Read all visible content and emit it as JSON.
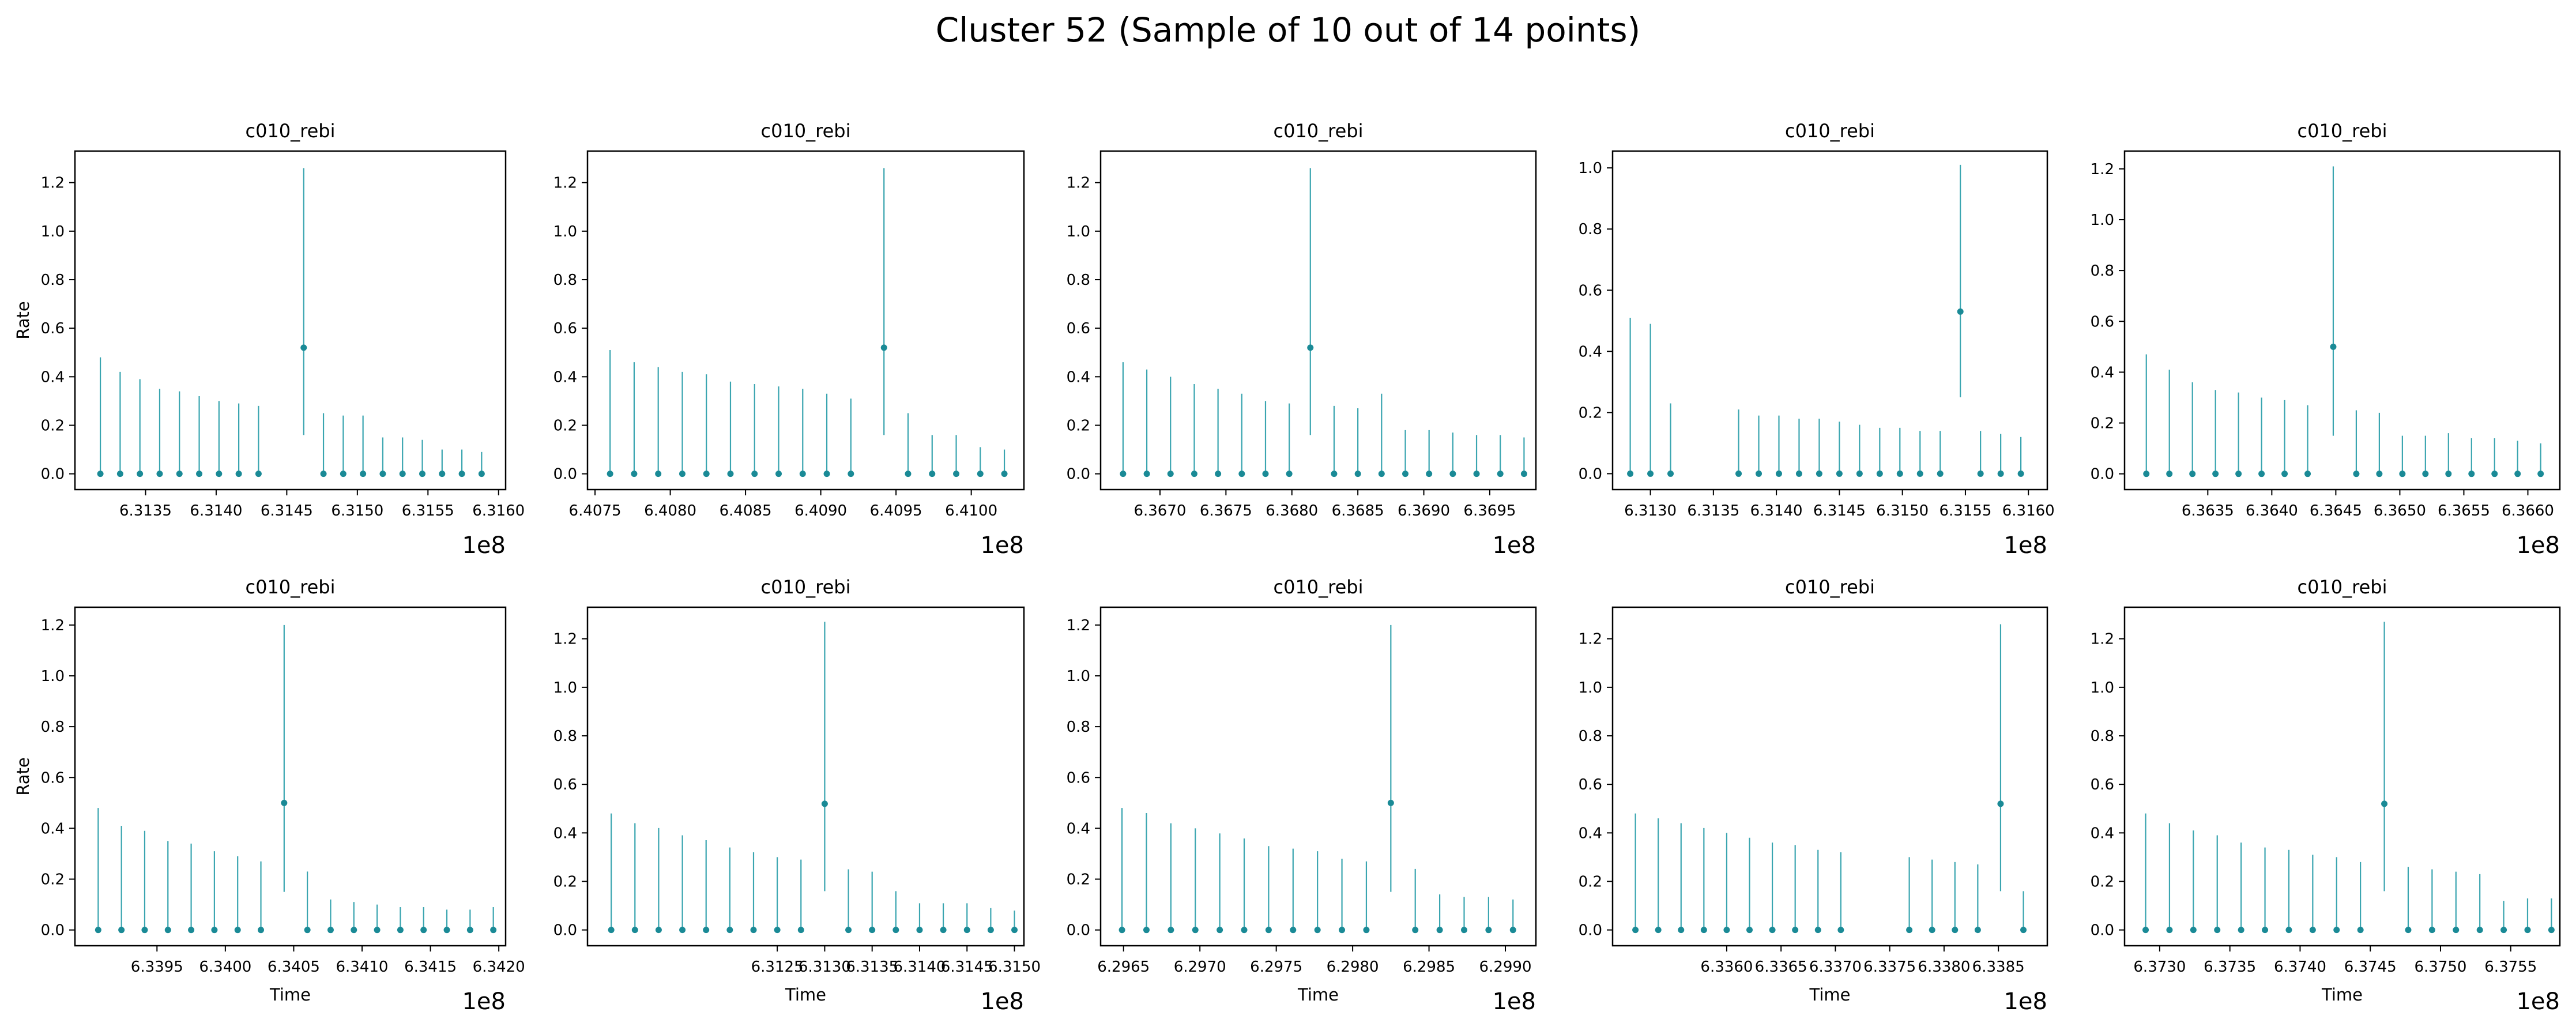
{
  "figure": {
    "suptitle": "Cluster 52 (Sample of 10 out of 14 points)"
  },
  "style": {
    "series_color": "#1a8a96",
    "errorbar_color": "#3aa5b0",
    "axis_color": "#000000"
  },
  "chart_data": [
    {
      "type": "scatter",
      "title": "c010_rebi",
      "xlabel": "",
      "ylabel": "Rate",
      "offset_text": "1e8",
      "xlim": [
        631.3,
        631.605
      ],
      "ylim": [
        -0.065,
        1.33
      ],
      "xticks": [
        631.35,
        631.4,
        631.45,
        631.5,
        631.55,
        631.6
      ],
      "xtick_labels": [
        "6.3135",
        "6.3140",
        "6.3145",
        "6.3150",
        "6.3155",
        "6.3160"
      ],
      "yticks": [
        0,
        0.2,
        0.4,
        0.6,
        0.8,
        1.0,
        1.2
      ],
      "ytick_labels": [
        "0.0",
        "0.2",
        "0.4",
        "0.6",
        "0.8",
        "1.0",
        "1.2"
      ],
      "x": [
        631.318,
        631.332,
        631.346,
        631.36,
        631.374,
        631.388,
        631.402,
        631.416,
        631.43,
        631.462,
        631.476,
        631.49,
        631.504,
        631.518,
        631.532,
        631.546,
        631.56,
        631.574,
        631.588
      ],
      "y": [
        0,
        0,
        0,
        0,
        0,
        0,
        0,
        0,
        0,
        0.52,
        0,
        0,
        0,
        0,
        0,
        0,
        0,
        0,
        0
      ],
      "yerr_up": [
        0.48,
        0.42,
        0.39,
        0.35,
        0.34,
        0.32,
        0.3,
        0.29,
        0.28,
        0.74,
        0.25,
        0.24,
        0.24,
        0.15,
        0.15,
        0.14,
        0.1,
        0.1,
        0.09
      ],
      "yerr_down": [
        0,
        0,
        0,
        0,
        0,
        0,
        0,
        0,
        0,
        0.36,
        0,
        0,
        0,
        0,
        0,
        0,
        0,
        0,
        0
      ]
    },
    {
      "type": "scatter",
      "title": "c010_rebi",
      "xlabel": "",
      "ylabel": "",
      "offset_text": "1e8",
      "xlim": [
        640.745,
        641.035
      ],
      "ylim": [
        -0.065,
        1.33
      ],
      "xticks": [
        640.75,
        640.8,
        640.85,
        640.9,
        640.95,
        641.0
      ],
      "xtick_labels": [
        "6.4075",
        "6.4080",
        "6.4085",
        "6.4090",
        "6.4095",
        "6.4100"
      ],
      "yticks": [
        0,
        0.2,
        0.4,
        0.6,
        0.8,
        1.0,
        1.2
      ],
      "ytick_labels": [
        "0.0",
        "0.2",
        "0.4",
        "0.6",
        "0.8",
        "1.0",
        "1.2"
      ],
      "x": [
        640.76,
        640.776,
        640.792,
        640.808,
        640.824,
        640.84,
        640.856,
        640.872,
        640.888,
        640.904,
        640.92,
        640.942,
        640.958,
        640.974,
        640.99,
        641.006,
        641.022
      ],
      "y": [
        0,
        0,
        0,
        0,
        0,
        0,
        0,
        0,
        0,
        0,
        0,
        0.52,
        0,
        0,
        0,
        0,
        0
      ],
      "yerr_up": [
        0.51,
        0.46,
        0.44,
        0.42,
        0.41,
        0.38,
        0.37,
        0.36,
        0.35,
        0.33,
        0.31,
        0.74,
        0.25,
        0.16,
        0.16,
        0.11,
        0.1
      ],
      "yerr_down": [
        0,
        0,
        0,
        0,
        0,
        0,
        0,
        0,
        0,
        0,
        0,
        0.36,
        0,
        0,
        0,
        0,
        0
      ]
    },
    {
      "type": "scatter",
      "title": "c010_rebi",
      "xlabel": "",
      "ylabel": "",
      "offset_text": "1e8",
      "xlim": [
        636.655,
        636.985
      ],
      "ylim": [
        -0.065,
        1.33
      ],
      "xticks": [
        636.7,
        636.75,
        636.8,
        636.85,
        636.9,
        636.95
      ],
      "xtick_labels": [
        "6.3670",
        "6.3675",
        "6.3680",
        "6.3685",
        "6.3690",
        "6.3695"
      ],
      "yticks": [
        0,
        0.2,
        0.4,
        0.6,
        0.8,
        1.0,
        1.2
      ],
      "ytick_labels": [
        "0.0",
        "0.2",
        "0.4",
        "0.6",
        "0.8",
        "1.0",
        "1.2"
      ],
      "x": [
        636.672,
        636.69,
        636.708,
        636.726,
        636.744,
        636.762,
        636.78,
        636.798,
        636.814,
        636.832,
        636.85,
        636.868,
        636.886,
        636.904,
        636.922,
        636.94,
        636.958,
        636.976
      ],
      "y": [
        0,
        0,
        0,
        0,
        0,
        0,
        0,
        0,
        0.52,
        0,
        0,
        0,
        0,
        0,
        0,
        0,
        0,
        0
      ],
      "yerr_up": [
        0.46,
        0.43,
        0.4,
        0.37,
        0.35,
        0.33,
        0.3,
        0.29,
        0.74,
        0.28,
        0.27,
        0.33,
        0.18,
        0.18,
        0.17,
        0.16,
        0.16,
        0.15
      ],
      "yerr_down": [
        0,
        0,
        0,
        0,
        0,
        0,
        0,
        0,
        0.36,
        0,
        0,
        0,
        0,
        0,
        0,
        0,
        0,
        0
      ]
    },
    {
      "type": "scatter",
      "title": "c010_rebi",
      "xlabel": "",
      "ylabel": "",
      "offset_text": "1e8",
      "xlim": [
        631.27,
        631.615
      ],
      "ylim": [
        -0.052,
        1.055
      ],
      "xticks": [
        631.3,
        631.35,
        631.4,
        631.45,
        631.5,
        631.55,
        631.6
      ],
      "xtick_labels": [
        "6.3130",
        "6.3135",
        "6.3140",
        "6.3145",
        "6.3150",
        "6.3155",
        "6.3160"
      ],
      "yticks": [
        0,
        0.2,
        0.4,
        0.6,
        0.8,
        1.0
      ],
      "ytick_labels": [
        "0.0",
        "0.2",
        "0.4",
        "0.6",
        "0.8",
        "1.0"
      ],
      "x": [
        631.284,
        631.3,
        631.316,
        631.37,
        631.386,
        631.402,
        631.418,
        631.434,
        631.45,
        631.466,
        631.482,
        631.498,
        631.514,
        631.53,
        631.546,
        631.562,
        631.578,
        631.594
      ],
      "y": [
        0,
        0,
        0,
        0,
        0,
        0,
        0,
        0,
        0,
        0,
        0,
        0,
        0,
        0,
        0.53,
        0,
        0,
        0
      ],
      "yerr_up": [
        0.51,
        0.49,
        0.23,
        0.21,
        0.19,
        0.19,
        0.18,
        0.18,
        0.17,
        0.16,
        0.15,
        0.15,
        0.14,
        0.14,
        0.48,
        0.14,
        0.13,
        0.12
      ],
      "yerr_down": [
        0,
        0,
        0,
        0,
        0,
        0,
        0,
        0,
        0,
        0,
        0,
        0,
        0,
        0,
        0.28,
        0,
        0,
        0
      ]
    },
    {
      "type": "scatter",
      "title": "c010_rebi",
      "xlabel": "",
      "ylabel": "",
      "offset_text": "1e8",
      "xlim": [
        636.285,
        636.625
      ],
      "ylim": [
        -0.062,
        1.27
      ],
      "xticks": [
        636.35,
        636.4,
        636.45,
        636.5,
        636.55,
        636.6
      ],
      "xtick_labels": [
        "6.3635",
        "6.3640",
        "6.3645",
        "6.3650",
        "6.3655",
        "6.3660"
      ],
      "yticks": [
        0,
        0.2,
        0.4,
        0.6,
        0.8,
        1.0,
        1.2
      ],
      "ytick_labels": [
        "0.0",
        "0.2",
        "0.4",
        "0.6",
        "0.8",
        "1.0",
        "1.2"
      ],
      "x": [
        636.302,
        636.32,
        636.338,
        636.356,
        636.374,
        636.392,
        636.41,
        636.428,
        636.448,
        636.466,
        636.484,
        636.502,
        636.52,
        636.538,
        636.556,
        636.574,
        636.592,
        636.61
      ],
      "y": [
        0,
        0,
        0,
        0,
        0,
        0,
        0,
        0,
        0.5,
        0,
        0,
        0,
        0,
        0,
        0,
        0,
        0,
        0
      ],
      "yerr_up": [
        0.47,
        0.41,
        0.36,
        0.33,
        0.32,
        0.3,
        0.29,
        0.27,
        0.71,
        0.25,
        0.24,
        0.15,
        0.15,
        0.16,
        0.14,
        0.14,
        0.13,
        0.12
      ],
      "yerr_down": [
        0,
        0,
        0,
        0,
        0,
        0,
        0,
        0,
        0.35,
        0,
        0,
        0,
        0,
        0,
        0,
        0,
        0,
        0
      ]
    },
    {
      "type": "scatter",
      "title": "c010_rebi",
      "xlabel": "Time",
      "ylabel": "Rate",
      "offset_text": "1e8",
      "xlim": [
        633.89,
        634.205
      ],
      "ylim": [
        -0.062,
        1.27
      ],
      "xticks": [
        633.95,
        634.0,
        634.05,
        634.1,
        634.15,
        634.2
      ],
      "xtick_labels": [
        "6.3395",
        "6.3400",
        "6.3405",
        "6.3410",
        "6.3415",
        "6.3420"
      ],
      "yticks": [
        0,
        0.2,
        0.4,
        0.6,
        0.8,
        1.0,
        1.2
      ],
      "ytick_labels": [
        "0.0",
        "0.2",
        "0.4",
        "0.6",
        "0.8",
        "1.0",
        "1.2"
      ],
      "x": [
        633.907,
        633.924,
        633.941,
        633.958,
        633.975,
        633.992,
        634.009,
        634.026,
        634.043,
        634.06,
        634.077,
        634.094,
        634.111,
        634.128,
        634.145,
        634.162,
        634.179,
        634.196
      ],
      "y": [
        0,
        0,
        0,
        0,
        0,
        0,
        0,
        0,
        0.5,
        0,
        0,
        0,
        0,
        0,
        0,
        0,
        0,
        0
      ],
      "yerr_up": [
        0.48,
        0.41,
        0.39,
        0.35,
        0.34,
        0.31,
        0.29,
        0.27,
        0.7,
        0.23,
        0.12,
        0.11,
        0.1,
        0.09,
        0.09,
        0.08,
        0.08,
        0.09
      ],
      "yerr_down": [
        0,
        0,
        0,
        0,
        0,
        0,
        0,
        0,
        0.35,
        0,
        0,
        0,
        0,
        0,
        0,
        0,
        0,
        0
      ]
    },
    {
      "type": "scatter",
      "title": "c010_rebi",
      "xlabel": "Time",
      "ylabel": "",
      "offset_text": "1e8",
      "xlim": [
        631.05,
        631.51
      ],
      "ylim": [
        -0.065,
        1.33
      ],
      "xticks": [
        631.25,
        631.3,
        631.35,
        631.4,
        631.45,
        631.5
      ],
      "xtick_labels": [
        "6.3125",
        "6.3130",
        "6.3135",
        "6.3140",
        "6.3145",
        "6.3150"
      ],
      "yticks": [
        0,
        0.2,
        0.4,
        0.6,
        0.8,
        1.0,
        1.2
      ],
      "ytick_labels": [
        "0.0",
        "0.2",
        "0.4",
        "0.6",
        "0.8",
        "1.0",
        "1.2"
      ],
      "x": [
        631.075,
        631.1,
        631.125,
        631.15,
        631.175,
        631.2,
        631.225,
        631.25,
        631.275,
        631.3,
        631.325,
        631.35,
        631.375,
        631.4,
        631.425,
        631.45,
        631.475,
        631.5
      ],
      "y": [
        0,
        0,
        0,
        0,
        0,
        0,
        0,
        0,
        0,
        0.52,
        0,
        0,
        0,
        0,
        0,
        0,
        0,
        0
      ],
      "yerr_up": [
        0.48,
        0.44,
        0.42,
        0.39,
        0.37,
        0.34,
        0.32,
        0.3,
        0.29,
        0.75,
        0.25,
        0.24,
        0.16,
        0.11,
        0.11,
        0.11,
        0.09,
        0.08
      ],
      "yerr_down": [
        0,
        0,
        0,
        0,
        0,
        0,
        0,
        0,
        0,
        0.36,
        0,
        0,
        0,
        0,
        0,
        0,
        0,
        0
      ]
    },
    {
      "type": "scatter",
      "title": "c010_rebi",
      "xlabel": "Time",
      "ylabel": "",
      "offset_text": "1e8",
      "xlim": [
        629.635,
        629.92
      ],
      "ylim": [
        -0.062,
        1.27
      ],
      "xticks": [
        629.65,
        629.7,
        629.75,
        629.8,
        629.85,
        629.9
      ],
      "xtick_labels": [
        "6.2965",
        "6.2970",
        "6.2975",
        "6.2980",
        "6.2985",
        "6.2990"
      ],
      "yticks": [
        0,
        0.2,
        0.4,
        0.6,
        0.8,
        1.0,
        1.2
      ],
      "ytick_labels": [
        "0.0",
        "0.2",
        "0.4",
        "0.6",
        "0.8",
        "1.0",
        "1.2"
      ],
      "x": [
        629.649,
        629.665,
        629.681,
        629.697,
        629.713,
        629.729,
        629.745,
        629.761,
        629.777,
        629.793,
        629.809,
        629.825,
        629.841,
        629.857,
        629.873,
        629.889,
        629.905
      ],
      "y": [
        0,
        0,
        0,
        0,
        0,
        0,
        0,
        0,
        0,
        0,
        0,
        0.5,
        0,
        0,
        0,
        0,
        0
      ],
      "yerr_up": [
        0.48,
        0.46,
        0.42,
        0.4,
        0.38,
        0.36,
        0.33,
        0.32,
        0.31,
        0.28,
        0.27,
        0.7,
        0.24,
        0.14,
        0.13,
        0.13,
        0.12
      ],
      "yerr_down": [
        0,
        0,
        0,
        0,
        0,
        0,
        0,
        0,
        0,
        0,
        0,
        0.35,
        0,
        0,
        0,
        0,
        0
      ]
    },
    {
      "type": "scatter",
      "title": "c010_rebi",
      "xlabel": "Time",
      "ylabel": "",
      "offset_text": "1e8",
      "xlim": [
        633.495,
        633.895
      ],
      "ylim": [
        -0.065,
        1.33
      ],
      "xticks": [
        633.6,
        633.65,
        633.7,
        633.75,
        633.8,
        633.85
      ],
      "xtick_labels": [
        "6.3360",
        "6.3365",
        "6.3370",
        "6.3375",
        "6.3380",
        "6.3385"
      ],
      "yticks": [
        0,
        0.2,
        0.4,
        0.6,
        0.8,
        1.0,
        1.2
      ],
      "ytick_labels": [
        "0.0",
        "0.2",
        "0.4",
        "0.6",
        "0.8",
        "1.0",
        "1.2"
      ],
      "x": [
        633.516,
        633.537,
        633.558,
        633.579,
        633.6,
        633.621,
        633.642,
        633.663,
        633.684,
        633.705,
        633.768,
        633.789,
        633.81,
        633.831,
        633.852,
        633.873
      ],
      "y": [
        0,
        0,
        0,
        0,
        0,
        0,
        0,
        0,
        0,
        0,
        0,
        0,
        0,
        0,
        0.52,
        0
      ],
      "yerr_up": [
        0.48,
        0.46,
        0.44,
        0.42,
        0.4,
        0.38,
        0.36,
        0.35,
        0.33,
        0.32,
        0.3,
        0.29,
        0.28,
        0.27,
        0.74,
        0.16
      ],
      "yerr_down": [
        0,
        0,
        0,
        0,
        0,
        0,
        0,
        0,
        0,
        0,
        0,
        0,
        0,
        0,
        0.36,
        0
      ]
    },
    {
      "type": "scatter",
      "title": "c010_rebi",
      "xlabel": "Time",
      "ylabel": "",
      "offset_text": "1e8",
      "xlim": [
        637.275,
        637.585
      ],
      "ylim": [
        -0.065,
        1.33
      ],
      "xticks": [
        637.3,
        637.35,
        637.4,
        637.45,
        637.5,
        637.55
      ],
      "xtick_labels": [
        "6.3730",
        "6.3735",
        "6.3740",
        "6.3745",
        "6.3750",
        "6.3755"
      ],
      "yticks": [
        0,
        0.2,
        0.4,
        0.6,
        0.8,
        1.0,
        1.2
      ],
      "ytick_labels": [
        "0.0",
        "0.2",
        "0.4",
        "0.6",
        "0.8",
        "1.0",
        "1.2"
      ],
      "x": [
        637.29,
        637.307,
        637.324,
        637.341,
        637.358,
        637.375,
        637.392,
        637.409,
        637.426,
        637.443,
        637.46,
        637.477,
        637.494,
        637.511,
        637.528,
        637.545,
        637.562,
        637.579
      ],
      "y": [
        0,
        0,
        0,
        0,
        0,
        0,
        0,
        0,
        0,
        0,
        0.52,
        0,
        0,
        0,
        0,
        0,
        0,
        0
      ],
      "yerr_up": [
        0.48,
        0.44,
        0.41,
        0.39,
        0.36,
        0.34,
        0.33,
        0.31,
        0.3,
        0.28,
        0.75,
        0.26,
        0.25,
        0.24,
        0.23,
        0.12,
        0.13,
        0.13
      ],
      "yerr_down": [
        0,
        0,
        0,
        0,
        0,
        0,
        0,
        0,
        0,
        0,
        0.36,
        0,
        0,
        0,
        0,
        0,
        0,
        0
      ]
    }
  ]
}
